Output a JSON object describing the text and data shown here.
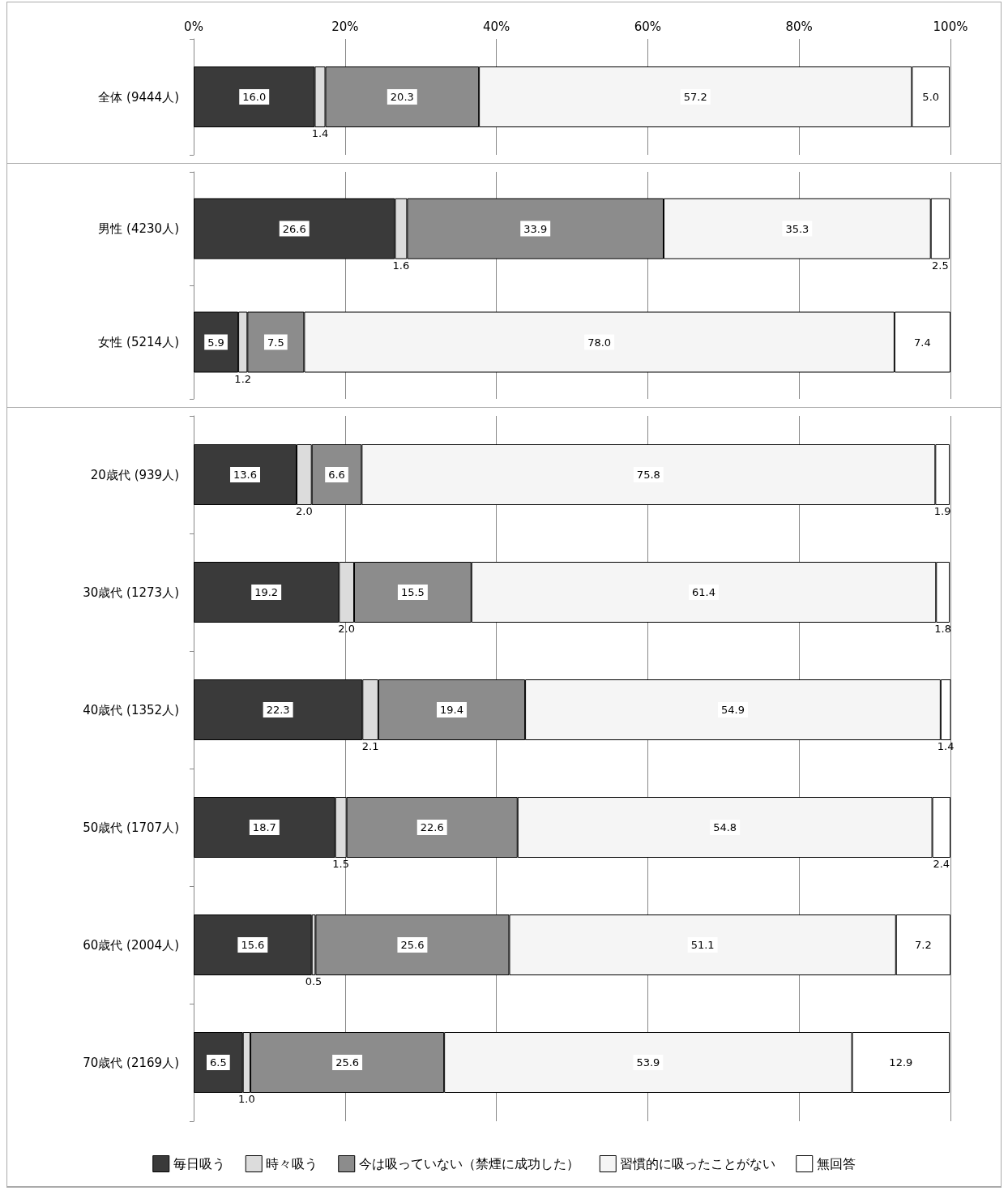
{
  "chart_data": [
    {
      "type": "bar",
      "orientation": "horizontal",
      "stacked": true,
      "categories": [
        "全体 (9444人)"
      ],
      "xlim": [
        0,
        100
      ],
      "xticks": [
        {
          "value": 0,
          "label": "0%"
        },
        {
          "value": 20,
          "label": "20%"
        },
        {
          "value": 40,
          "label": "40%"
        },
        {
          "value": 60,
          "label": "60%"
        },
        {
          "value": 80,
          "label": "80%"
        },
        {
          "value": 100,
          "label": "100%"
        }
      ],
      "grid": "x",
      "series": [
        {
          "color": "#3a3a3a",
          "values": [
            16.0
          ],
          "value_labels": [
            "16.0"
          ]
        },
        {
          "color": "#dcdcdc",
          "values": [
            1.4
          ],
          "value_labels": [
            "1.4"
          ]
        },
        {
          "color": "#8c8c8c",
          "values": [
            20.3
          ],
          "value_labels": [
            "20.3"
          ]
        },
        {
          "color": "#f5f5f5",
          "values": [
            57.2
          ],
          "value_labels": [
            "57.2"
          ]
        },
        {
          "color": "#ffffff",
          "values": [
            5.0
          ],
          "value_labels": [
            "5.0"
          ]
        }
      ]
    },
    {
      "type": "bar",
      "orientation": "horizontal",
      "stacked": true,
      "categories": [
        "男性 (4230人)",
        "女性 (5214人)"
      ],
      "xlim": [
        0,
        100
      ],
      "xticks": [
        {
          "value": 0,
          "label": null
        },
        {
          "value": 20,
          "label": null
        },
        {
          "value": 40,
          "label": null
        },
        {
          "value": 60,
          "label": null
        },
        {
          "value": 80,
          "label": null
        },
        {
          "value": 100,
          "label": null
        }
      ],
      "grid": "x",
      "tick_labels": "y",
      "series": [
        {
          "color": "#3a3a3a",
          "values": [
            26.6,
            5.9
          ],
          "value_labels": [
            "26.6",
            "5.9"
          ]
        },
        {
          "color": "#dcdcdc",
          "values": [
            1.6,
            1.2
          ],
          "value_labels": [
            "1.6",
            "1.2"
          ]
        },
        {
          "color": "#8c8c8c",
          "values": [
            33.9,
            7.5
          ],
          "value_labels": [
            "33.9",
            "7.5"
          ]
        },
        {
          "color": "#f5f5f5",
          "values": [
            35.3,
            78.0
          ],
          "value_labels": [
            "35.3",
            "78.0"
          ]
        },
        {
          "color": "#ffffff",
          "values": [
            2.5,
            7.4
          ],
          "value_labels": [
            "2.5",
            "7.4"
          ]
        }
      ]
    },
    {
      "type": "bar",
      "orientation": "horizontal",
      "stacked": true,
      "categories": [
        "20歳代 (939人)",
        "30歳代 (1273人)",
        "40歳代 (1352人)",
        "50歳代 (1707人)",
        "60歳代 (2004人)",
        "70歳代 (2169人)"
      ],
      "xlim": [
        0,
        100
      ],
      "xticks": [
        {
          "value": 0,
          "label": null
        },
        {
          "value": 20,
          "label": null
        },
        {
          "value": 40,
          "label": null
        },
        {
          "value": 60,
          "label": null
        },
        {
          "value": 80,
          "label": null
        },
        {
          "value": 100,
          "label": null
        }
      ],
      "grid": "x",
      "tick_labels": "y",
      "legend": "bottom",
      "series": [
        {
          "name": "毎日吸う",
          "color": "#3a3a3a",
          "values": [
            13.6,
            19.2,
            22.3,
            18.7,
            15.6,
            6.5
          ],
          "value_labels": [
            "13.6",
            "19.2",
            "22.3",
            "18.7",
            "15.6",
            "6.5"
          ]
        },
        {
          "name": "時々吸う",
          "color": "#dcdcdc",
          "values": [
            2.0,
            2.0,
            2.1,
            1.5,
            0.5,
            1.0
          ],
          "value_labels": [
            "2.0",
            "2.0",
            "2.1",
            "1.5",
            "0.5",
            "1.0"
          ]
        },
        {
          "name": "今は吸っていない（禁煙に成功した）",
          "color": "#8c8c8c",
          "values": [
            6.6,
            15.5,
            19.4,
            22.6,
            25.6,
            25.6
          ],
          "value_labels": [
            "6.6",
            "15.5",
            "19.4",
            "22.6",
            "25.6",
            "25.6"
          ]
        },
        {
          "name": "習慣的に吸ったことがない",
          "color": "#f5f5f5",
          "values": [
            75.8,
            61.4,
            54.9,
            54.8,
            51.1,
            53.9
          ],
          "value_labels": [
            "75.8",
            "61.4",
            "54.9",
            "54.8",
            "51.1",
            "53.9"
          ]
        },
        {
          "name": "無回答",
          "color": "#ffffff",
          "values": [
            1.9,
            1.8,
            1.4,
            2.4,
            7.2,
            12.9
          ],
          "value_labels": [
            "1.9",
            "1.8",
            "1.4",
            "2.4",
            "7.2",
            "12.9"
          ]
        }
      ]
    }
  ]
}
